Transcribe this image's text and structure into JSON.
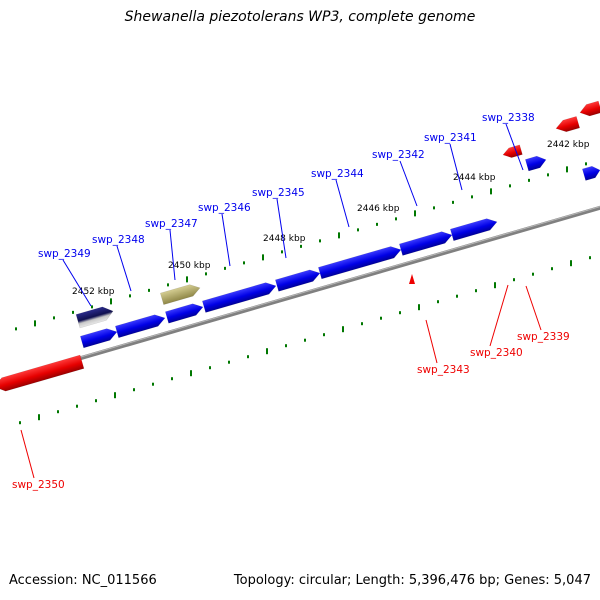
{
  "title": "Shewanella piezotolerans WP3, complete genome",
  "footer": {
    "accession": "Accession: NC_011566",
    "summary": "Topology: circular; Length: 5,396,476 bp; Genes: 5,047"
  },
  "colors": {
    "forward_gene": "#0000ee",
    "reverse_gene": "#ee0000",
    "backbone": "#808080",
    "tick": "#007700",
    "highlight_gene": "#b5ad6a",
    "dark_gene": "#1c1c6e"
  },
  "scale_labels": [
    "2442 kbp",
    "2444 kbp",
    "2446 kbp",
    "2448 kbp",
    "2450 kbp",
    "2452 kbp"
  ],
  "forward_labels": [
    "swp_2338",
    "swp_2341",
    "swp_2342",
    "swp_2344",
    "swp_2345",
    "swp_2346",
    "swp_2347",
    "swp_2348",
    "swp_2349"
  ],
  "reverse_labels": [
    "swp_2339",
    "swp_2340",
    "swp_2343",
    "swp_2350"
  ]
}
